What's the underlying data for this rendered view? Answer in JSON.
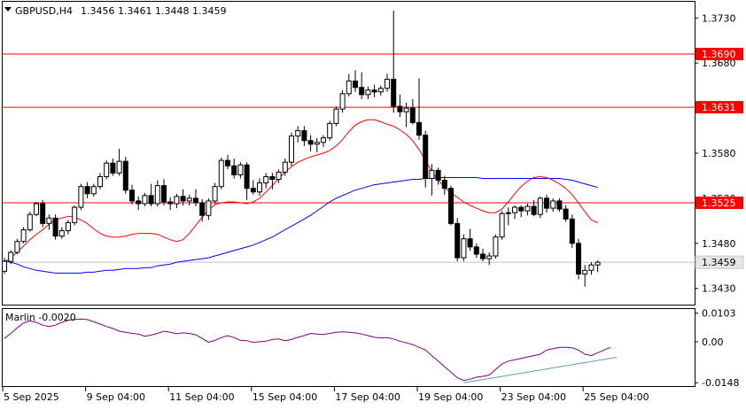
{
  "header": {
    "symbol_text": "GBPUSD,H4",
    "ohlc_text": "1.3456 1.3461 1.3448 1.3459"
  },
  "chart_data": [
    {
      "type": "candlestick",
      "symbol": "GBPUSD",
      "timeframe": "H4",
      "ylim": [
        1.3412,
        1.3748
      ],
      "y_ticks": [
        {
          "value": 1.373,
          "label": "1.3730"
        },
        {
          "value": 1.368,
          "label": "1.3680"
        },
        {
          "value": 1.358,
          "label": "1.3580"
        },
        {
          "value": 1.353,
          "label": "1.3530"
        },
        {
          "value": 1.348,
          "label": "1.3480"
        },
        {
          "value": 1.343,
          "label": "1.3430"
        }
      ],
      "x_ticks": [
        "5 Sep 2025",
        "9 Sep 04:00",
        "11 Sep 04:00",
        "15 Sep 04:00",
        "17 Sep 04:00",
        "19 Sep 04:00",
        "23 Sep 04:00",
        "25 Sep 04:00"
      ],
      "last_price": {
        "value": 1.3459,
        "label": "1.3459"
      },
      "levels": [
        {
          "value": 1.369,
          "label": "1.3690",
          "color": "#ff0000"
        },
        {
          "value": 1.3631,
          "label": "1.3631",
          "color": "#ff0000"
        },
        {
          "value": 1.3525,
          "label": "1.3525",
          "color": "#ff0000"
        }
      ],
      "ohlc": [
        [
          1.3449,
          1.3464,
          1.3446,
          1.346
        ],
        [
          1.346,
          1.3472,
          1.3457,
          1.347
        ],
        [
          1.347,
          1.3485,
          1.3468,
          1.3482
        ],
        [
          1.3482,
          1.3498,
          1.348,
          1.3495
        ],
        [
          1.3495,
          1.3515,
          1.3493,
          1.3512
        ],
        [
          1.3512,
          1.3526,
          1.351,
          1.3524
        ],
        [
          1.3524,
          1.3528,
          1.3498,
          1.3502
        ],
        [
          1.3502,
          1.3512,
          1.3495,
          1.3508
        ],
        [
          1.3508,
          1.3512,
          1.3484,
          1.3488
        ],
        [
          1.3488,
          1.3498,
          1.3485,
          1.3494
        ],
        [
          1.3494,
          1.3506,
          1.349,
          1.3503
        ],
        [
          1.3503,
          1.3522,
          1.35,
          1.352
        ],
        [
          1.352,
          1.3546,
          1.3517,
          1.3543
        ],
        [
          1.3543,
          1.3548,
          1.353,
          1.3535
        ],
        [
          1.3535,
          1.3546,
          1.3532,
          1.3543
        ],
        [
          1.3543,
          1.3558,
          1.354,
          1.3554
        ],
        [
          1.3554,
          1.3572,
          1.3551,
          1.3569
        ],
        [
          1.3569,
          1.3574,
          1.3555,
          1.3558
        ],
        [
          1.3558,
          1.3585,
          1.3555,
          1.3571
        ],
        [
          1.3571,
          1.3576,
          1.3535,
          1.3539
        ],
        [
          1.3539,
          1.3545,
          1.3523,
          1.3527
        ],
        [
          1.3527,
          1.3532,
          1.3517,
          1.3524
        ],
        [
          1.3524,
          1.3536,
          1.3521,
          1.3533
        ],
        [
          1.3533,
          1.3546,
          1.3521,
          1.3524
        ],
        [
          1.3524,
          1.355,
          1.3521,
          1.3544
        ],
        [
          1.3544,
          1.3551,
          1.3522,
          1.3526
        ],
        [
          1.3526,
          1.3531,
          1.3517,
          1.3524
        ],
        [
          1.3524,
          1.3535,
          1.3519,
          1.3532
        ],
        [
          1.3532,
          1.354,
          1.3522,
          1.3527
        ],
        [
          1.3527,
          1.3534,
          1.3522,
          1.353
        ],
        [
          1.353,
          1.354,
          1.3521,
          1.3525
        ],
        [
          1.3525,
          1.3529,
          1.3504,
          1.3511
        ],
        [
          1.3511,
          1.353,
          1.3506,
          1.3527
        ],
        [
          1.3527,
          1.3547,
          1.3524,
          1.3543
        ],
        [
          1.3543,
          1.3575,
          1.354,
          1.3572
        ],
        [
          1.3572,
          1.3578,
          1.3562,
          1.3566
        ],
        [
          1.3566,
          1.3574,
          1.3552,
          1.3556
        ],
        [
          1.3556,
          1.357,
          1.3552,
          1.3567
        ],
        [
          1.3567,
          1.357,
          1.3528,
          1.3541
        ],
        [
          1.3541,
          1.355,
          1.3534,
          1.3537
        ],
        [
          1.3537,
          1.3552,
          1.3533,
          1.3547
        ],
        [
          1.3547,
          1.3558,
          1.3541,
          1.3554
        ],
        [
          1.3554,
          1.3558,
          1.354,
          1.3551
        ],
        [
          1.3551,
          1.3562,
          1.3547,
          1.3559
        ],
        [
          1.3559,
          1.3574,
          1.3555,
          1.357
        ],
        [
          1.357,
          1.3603,
          1.3566,
          1.3599
        ],
        [
          1.3599,
          1.361,
          1.3592,
          1.3605
        ],
        [
          1.3605,
          1.361,
          1.3588,
          1.3594
        ],
        [
          1.3594,
          1.36,
          1.3582,
          1.359
        ],
        [
          1.359,
          1.3597,
          1.3581,
          1.3592
        ],
        [
          1.3592,
          1.36,
          1.3587,
          1.3597
        ],
        [
          1.3597,
          1.3616,
          1.3594,
          1.3613
        ],
        [
          1.3613,
          1.3632,
          1.361,
          1.3629
        ],
        [
          1.3629,
          1.365,
          1.3625,
          1.3646
        ],
        [
          1.3646,
          1.3668,
          1.3643,
          1.366
        ],
        [
          1.366,
          1.3672,
          1.3648,
          1.3653
        ],
        [
          1.3653,
          1.367,
          1.364,
          1.3645
        ],
        [
          1.3645,
          1.3654,
          1.364,
          1.365
        ],
        [
          1.365,
          1.3656,
          1.3642,
          1.3648
        ],
        [
          1.3648,
          1.3655,
          1.3644,
          1.3652
        ],
        [
          1.3652,
          1.3668,
          1.3648,
          1.3662
        ],
        [
          1.3662,
          1.3738,
          1.3625,
          1.3632
        ],
        [
          1.3632,
          1.3645,
          1.362,
          1.3626
        ],
        [
          1.3626,
          1.3636,
          1.3609,
          1.363
        ],
        [
          1.363,
          1.364,
          1.3612,
          1.3614
        ],
        [
          1.3614,
          1.3663,
          1.3595,
          1.36
        ],
        [
          1.36,
          1.3605,
          1.3542,
          1.3552
        ],
        [
          1.3552,
          1.3568,
          1.3533,
          1.3561
        ],
        [
          1.3561,
          1.3564,
          1.3545,
          1.355
        ],
        [
          1.355,
          1.3555,
          1.3534,
          1.3541
        ],
        [
          1.3541,
          1.3544,
          1.35,
          1.3502
        ],
        [
          1.3502,
          1.3508,
          1.346,
          1.3464
        ],
        [
          1.3464,
          1.349,
          1.346,
          1.3485
        ],
        [
          1.3485,
          1.3496,
          1.3472,
          1.3476
        ],
        [
          1.3476,
          1.348,
          1.3464,
          1.3468
        ],
        [
          1.3468,
          1.3474,
          1.346,
          1.3463
        ],
        [
          1.3463,
          1.347,
          1.3456,
          1.3466
        ],
        [
          1.3466,
          1.349,
          1.3463,
          1.3487
        ],
        [
          1.3487,
          1.3516,
          1.3484,
          1.3513
        ],
        [
          1.3513,
          1.352,
          1.35,
          1.3514
        ],
        [
          1.3514,
          1.3522,
          1.3507,
          1.352
        ],
        [
          1.352,
          1.3522,
          1.3509,
          1.3516
        ],
        [
          1.3516,
          1.3524,
          1.3511,
          1.3521
        ],
        [
          1.3521,
          1.3528,
          1.351,
          1.3512
        ],
        [
          1.3512,
          1.3532,
          1.3508,
          1.353
        ],
        [
          1.353,
          1.3534,
          1.3514,
          1.3519
        ],
        [
          1.3519,
          1.353,
          1.3515,
          1.3527
        ],
        [
          1.3527,
          1.353,
          1.3515,
          1.3518
        ],
        [
          1.3518,
          1.3522,
          1.3504,
          1.3507
        ],
        [
          1.3507,
          1.3512,
          1.3475,
          1.348
        ],
        [
          1.348,
          1.3485,
          1.344,
          1.3446
        ],
        [
          1.3446,
          1.3456,
          1.3432,
          1.345
        ],
        [
          1.345,
          1.3459,
          1.3445,
          1.3456
        ],
        [
          1.3456,
          1.3461,
          1.3448,
          1.3459
        ]
      ],
      "series": [
        {
          "name": "",
          "color": "#0000ff",
          "values": [
            1.3461,
            1.3459,
            1.3457,
            1.3454,
            1.3452,
            1.345,
            1.3449,
            1.3448,
            1.3447,
            1.3447,
            1.3447,
            1.3447,
            1.3447,
            1.3448,
            1.3448,
            1.3449,
            1.345,
            1.345,
            1.3451,
            1.3452,
            1.3452,
            1.3452,
            1.3453,
            1.3453,
            1.3455,
            1.3456,
            1.3457,
            1.3459,
            1.346,
            1.3461,
            1.3462,
            1.3463,
            1.3464,
            1.3466,
            1.3468,
            1.347,
            1.3472,
            1.3474,
            1.3476,
            1.3478,
            1.3481,
            1.3484,
            1.3487,
            1.3491,
            1.3495,
            1.3499,
            1.3503,
            1.3507,
            1.3511,
            1.3516,
            1.3521,
            1.3526,
            1.353,
            1.3533,
            1.3536,
            1.3539,
            1.3541,
            1.3543,
            1.3545,
            1.3546,
            1.3547,
            1.3548,
            1.3549,
            1.355,
            1.3551,
            1.3551,
            1.3552,
            1.3552,
            1.3553,
            1.3553,
            1.3553,
            1.3553,
            1.3553,
            1.3553,
            1.3553,
            1.3552,
            1.3552,
            1.3552,
            1.3552,
            1.3552,
            1.3552,
            1.3552,
            1.3552,
            1.3552,
            1.3552,
            1.3552,
            1.3552,
            1.3552,
            1.3551,
            1.355,
            1.3548,
            1.3546,
            1.3544,
            1.3542
          ]
        },
        {
          "name": "",
          "color": "#ff0000",
          "values": [
            1.3459,
            1.3464,
            1.347,
            1.3477,
            1.3484,
            1.349,
            1.3495,
            1.3501,
            1.3506,
            1.3508,
            1.351,
            1.3509,
            1.3506,
            1.3502,
            1.3496,
            1.3491,
            1.3488,
            1.3487,
            1.3487,
            1.3488,
            1.349,
            1.3491,
            1.3491,
            1.3491,
            1.349,
            1.3487,
            1.3484,
            1.3482,
            1.3484,
            1.3491,
            1.35,
            1.3509,
            1.3517,
            1.3523,
            1.3525,
            1.3526,
            1.3526,
            1.3525,
            1.3524,
            1.3526,
            1.353,
            1.3537,
            1.3544,
            1.3552,
            1.3559,
            1.3565,
            1.357,
            1.3573,
            1.3576,
            1.3578,
            1.358,
            1.3583,
            1.3588,
            1.3595,
            1.3604,
            1.3611,
            1.3615,
            1.3617,
            1.3617,
            1.3615,
            1.3612,
            1.361,
            1.3606,
            1.3601,
            1.3594,
            1.3584,
            1.3572,
            1.356,
            1.355,
            1.3542,
            1.3536,
            1.3531,
            1.3526,
            1.3522,
            1.3519,
            1.3516,
            1.3514,
            1.3514,
            1.3518,
            1.3526,
            1.3535,
            1.3543,
            1.3549,
            1.3553,
            1.3554,
            1.3553,
            1.355,
            1.3546,
            1.3541,
            1.3534,
            1.3525,
            1.3515,
            1.3506,
            1.3503
          ]
        }
      ]
    },
    {
      "type": "line",
      "title": "Marlin -0.0020",
      "ylim": [
        -0.016,
        0.0118
      ],
      "y_ticks": [
        {
          "value": 0.0103,
          "label": "0.0103"
        },
        {
          "value": 0.0,
          "label": "0.00"
        },
        {
          "value": -0.0148,
          "label": "-0.0148"
        }
      ],
      "series": [
        {
          "name": "",
          "color": "#800080",
          "values": [
            0.0012,
            0.003,
            0.005,
            0.0068,
            0.0075,
            0.007,
            0.006,
            0.0055,
            0.006,
            0.007,
            0.0078,
            0.008,
            0.0082,
            0.008,
            0.0072,
            0.0064,
            0.0055,
            0.0048,
            0.0038,
            0.0034,
            0.003,
            0.0028,
            0.002,
            0.0024,
            0.003,
            0.0038,
            0.0034,
            0.0029,
            0.0032,
            0.003,
            0.0025,
            0.0012,
            -0.0002,
            0.0005,
            0.0015,
            0.0022,
            0.0015,
            0.0005,
            0.0004,
            -0.0002,
            0.0,
            0.0002,
            0.0008,
            0.001,
            0.0004,
            0.0008,
            0.0016,
            0.0022,
            0.003,
            0.0028,
            0.0026,
            0.003,
            0.0034,
            0.0036,
            0.0034,
            0.0032,
            0.0028,
            0.0022,
            0.0016,
            0.0014,
            0.0015,
            0.001,
            0.0002,
            -0.0004,
            -0.001,
            -0.002,
            -0.003,
            -0.005,
            -0.007,
            -0.009,
            -0.011,
            -0.013,
            -0.014,
            -0.0135,
            -0.0128,
            -0.0125,
            -0.012,
            -0.01,
            -0.008,
            -0.007,
            -0.0065,
            -0.006,
            -0.0055,
            -0.005,
            -0.0045,
            -0.003,
            -0.0025,
            -0.002,
            -0.002,
            -0.0022,
            -0.003,
            -0.0045,
            -0.005,
            -0.004,
            -0.003,
            -0.002
          ]
        },
        {
          "name": "",
          "color": "#5f9ea0",
          "values": [
            -0.0148,
            -0.0056
          ]
        }
      ]
    }
  ],
  "colors": {
    "frame": "#000000",
    "grid": "#c0c0c0",
    "bull": "#ffffff",
    "bear": "#000000",
    "level": "#ff0000",
    "price_tag": "#e6e6e6"
  }
}
